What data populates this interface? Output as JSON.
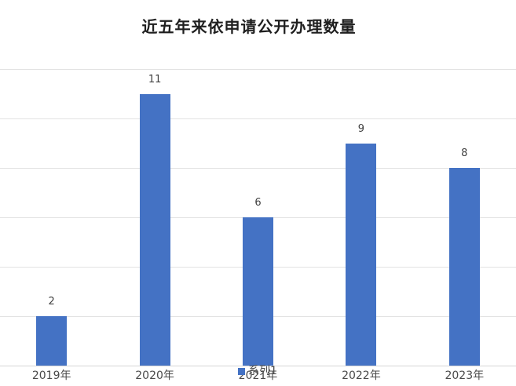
{
  "chart_data": {
    "type": "bar",
    "title": "近五年来依申请公开办理数量",
    "categories": [
      "2019年",
      "2020年",
      "2021年",
      "2022年",
      "2023年"
    ],
    "series": [
      {
        "name": "系列1",
        "values": [
          2,
          11,
          6,
          9,
          8
        ]
      }
    ],
    "data_labels": [
      "2",
      "11",
      "6",
      "9",
      "8"
    ],
    "xlabel": "",
    "ylabel": "",
    "ylim": [
      0,
      12
    ],
    "gridline_step": 2,
    "grid": true,
    "y_tick_labels_visible": false,
    "legend_position": "bottom-center",
    "legend_entries": [
      "系列1"
    ]
  },
  "colors": {
    "bar": "#4472C4",
    "legend_marker": "#4472C4",
    "gridline": "#E2E2E2",
    "axis_line": "#D6D6D6",
    "title_text": "#1F1F1F",
    "label_text": "#4A4A4A",
    "background": "#FFFFFF"
  }
}
